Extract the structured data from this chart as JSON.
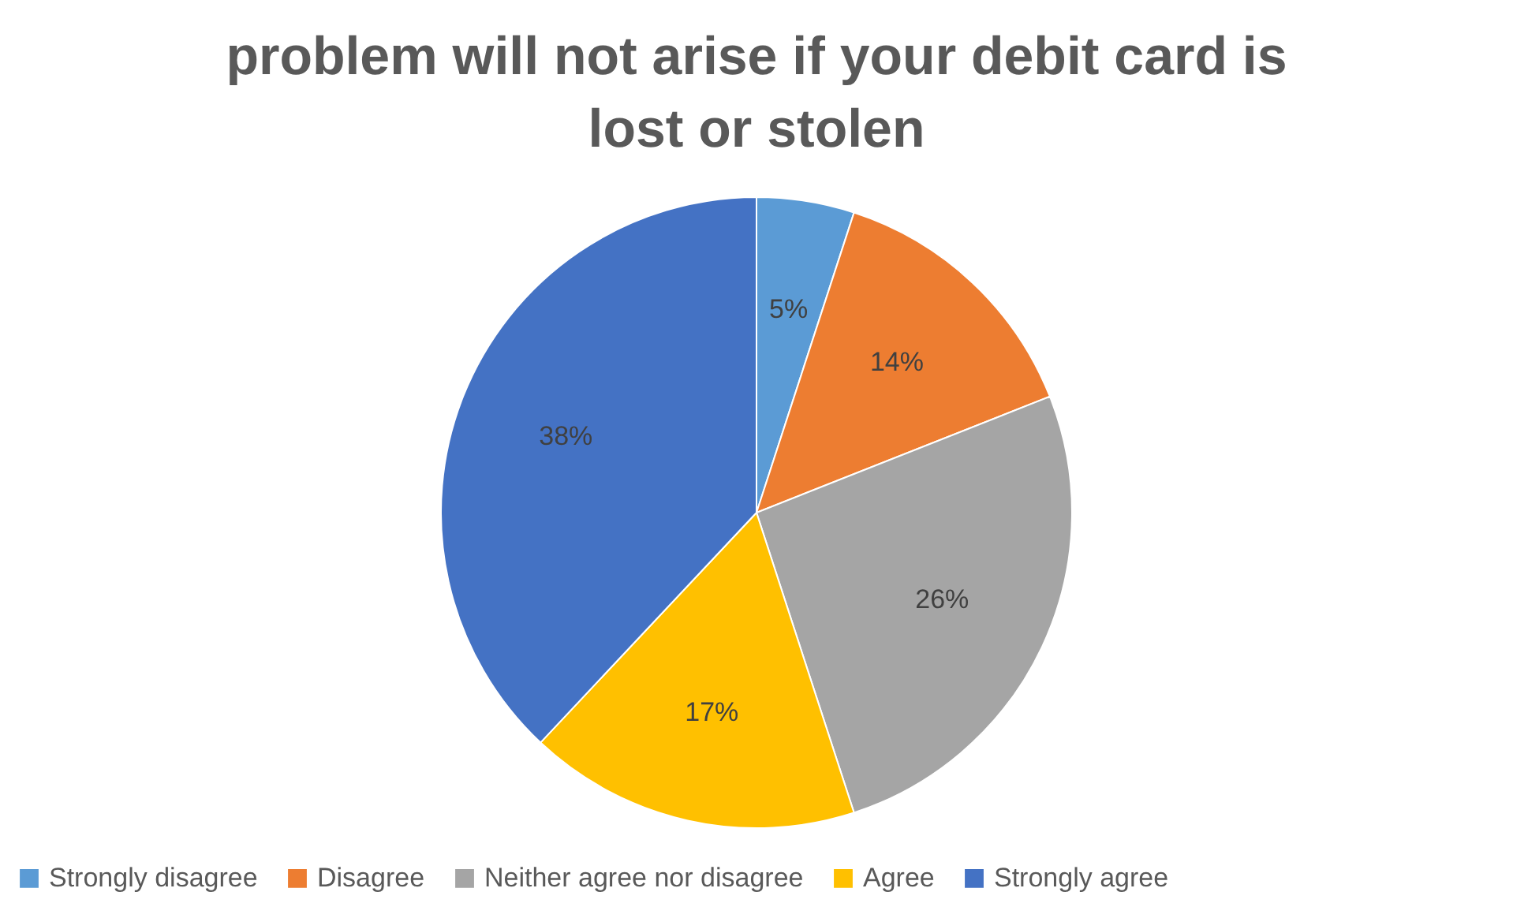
{
  "chart_data": {
    "type": "pie",
    "title": "problem will not arise if your debit card is lost or stolen",
    "categories": [
      "Strongly disagree",
      "Disagree",
      "Neither agree nor disagree",
      "Agree",
      "Strongly agree"
    ],
    "values": [
      5,
      14,
      26,
      17,
      38
    ],
    "colors": [
      "#5b9bd5",
      "#ed7d31",
      "#a5a5a5",
      "#ffc000",
      "#4472c4"
    ],
    "value_labels": [
      "5%",
      "14%",
      "26%",
      "17%",
      "38%"
    ],
    "legend": "bottom"
  }
}
